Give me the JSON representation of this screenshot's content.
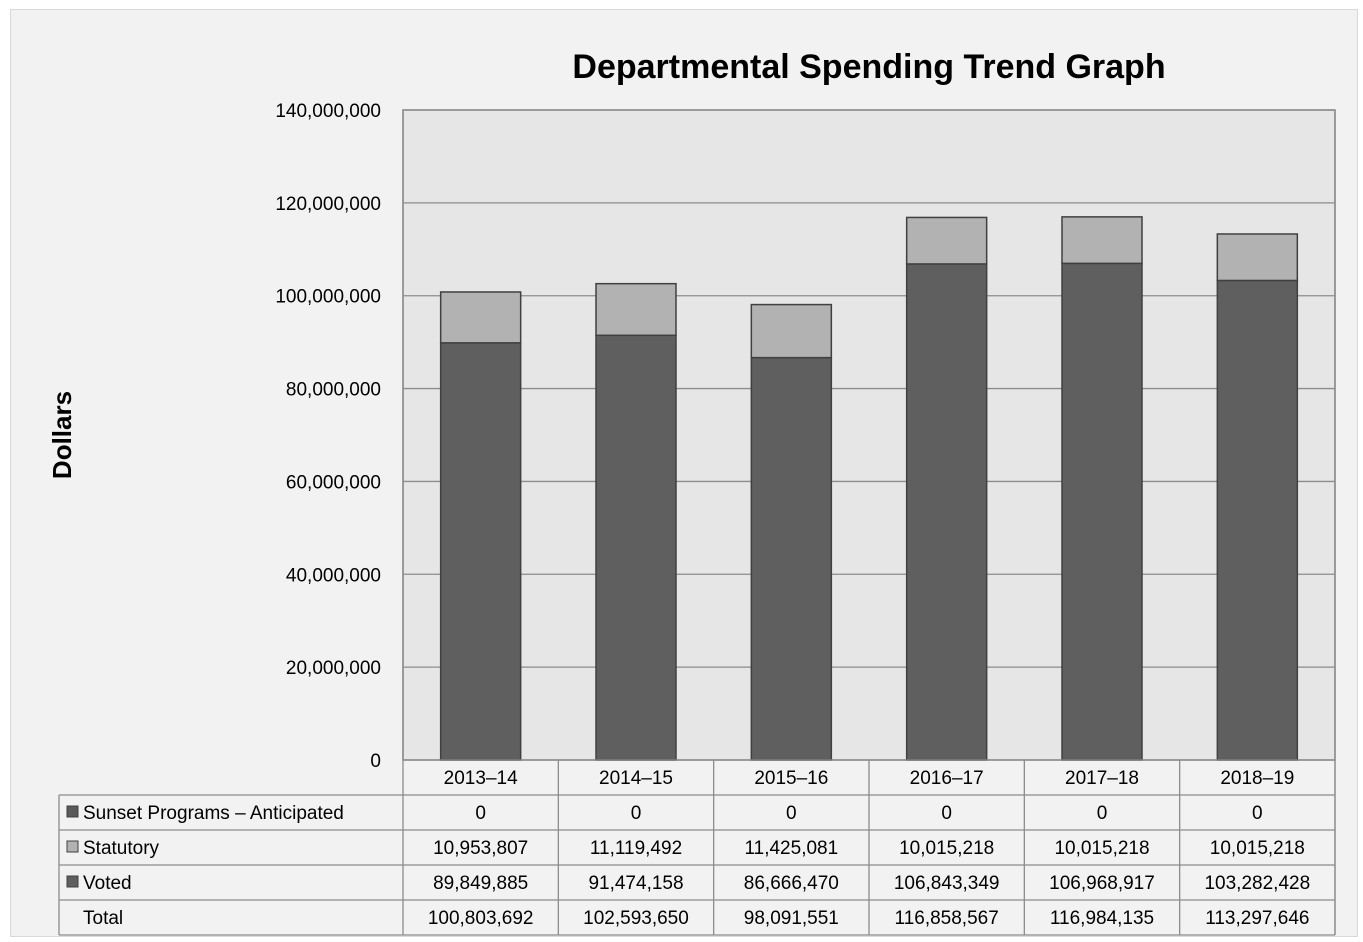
{
  "chart_data": {
    "type": "bar",
    "stacked": true,
    "title": "Departmental Spending Trend Graph",
    "ylabel": "Dollars",
    "xlabel": "",
    "ylim": [
      0,
      140000000
    ],
    "yticks": [
      0,
      20000000,
      40000000,
      60000000,
      80000000,
      100000000,
      120000000,
      140000000
    ],
    "ytick_labels": [
      "0",
      "20,000,000",
      "40,000,000",
      "60,000,000",
      "80,000,000",
      "100,000,000",
      "120,000,000",
      "140,000,000"
    ],
    "grid": true,
    "categories": [
      "2013–14",
      "2014–15",
      "2015–16",
      "2016–17",
      "2017–18",
      "2018–19"
    ],
    "series": [
      {
        "name": "Sunset Programs – Anticipated",
        "color": "#595959",
        "values": [
          0,
          0,
          0,
          0,
          0,
          0
        ],
        "labels": [
          "0",
          "0",
          "0",
          "0",
          "0",
          "0"
        ]
      },
      {
        "name": "Statutory",
        "color": "#b2b2b2",
        "values": [
          10953807,
          11119492,
          11425081,
          10015218,
          10015218,
          10015218
        ],
        "labels": [
          "10,953,807",
          "11,119,492",
          "11,425,081",
          "10,015,218",
          "10,015,218",
          "10,015,218"
        ]
      },
      {
        "name": "Voted",
        "color": "#5f5f5f",
        "values": [
          89849885,
          91474158,
          86666470,
          106843349,
          106968917,
          103282428
        ],
        "labels": [
          "89,849,885",
          "91,474,158",
          "86,666,470",
          "106,843,349",
          "106,968,917",
          "103,282,428"
        ]
      }
    ],
    "total": {
      "name": "Total",
      "values": [
        100803692,
        102593650,
        98091551,
        116858567,
        116984135,
        113297646
      ],
      "labels": [
        "100,803,692",
        "102,593,650",
        "98,091,551",
        "116,858,567",
        "116,984,135",
        "113,297,646"
      ]
    },
    "table_rows_order": [
      "Sunset Programs – Anticipated",
      "Statutory",
      "Voted",
      "Total"
    ],
    "legend_placement": "data-table",
    "plot_background": "#e6e6e6"
  }
}
